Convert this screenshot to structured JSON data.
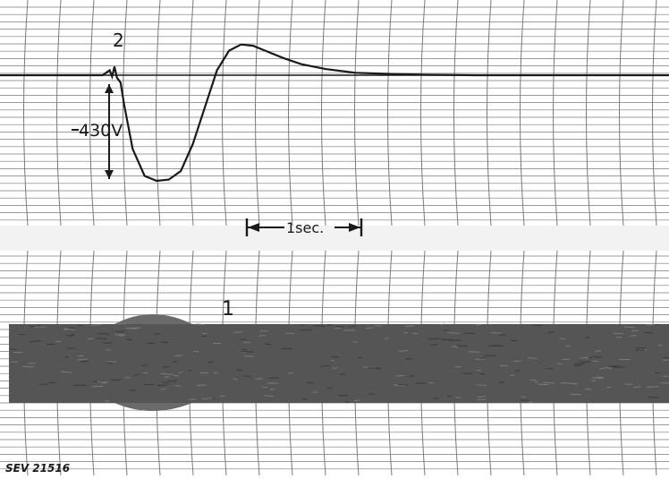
{
  "chart_data": [
    {
      "type": "line",
      "panel": "upper oscillogram",
      "title": "",
      "trace_label": "2",
      "amplitude_label": "430V",
      "time_marker_label": "1sec.",
      "xlabel": "",
      "ylabel": "",
      "grid": true,
      "xlim": [
        -0.95,
        4.6
      ],
      "ylim": [
        -600,
        700
      ],
      "series": [
        {
          "x": [
            -0.95,
            -0.1,
            -0.04,
            -0.02,
            0.0,
            0.02,
            0.05,
            0.08,
            0.15,
            0.25,
            0.35,
            0.45,
            0.55,
            0.65,
            0.75,
            0.85,
            0.95,
            1.05,
            1.15,
            1.25,
            1.4,
            1.55,
            1.75,
            2.0,
            2.3,
            2.6,
            3.0,
            3.5,
            4.0,
            4.6
          ],
          "y": [
            0,
            0,
            20,
            -5,
            35,
            -10,
            -30,
            -120,
            -300,
            -410,
            -430,
            -425,
            -390,
            -280,
            -130,
            20,
            100,
            125,
            120,
            100,
            70,
            45,
            25,
            10,
            5,
            2,
            0,
            0,
            0,
            0
          ]
        }
      ]
    },
    {
      "type": "area",
      "panel": "lower oscillogram",
      "trace_label": "1",
      "grid": true,
      "note": "dense high-frequency band (filled)"
    }
  ],
  "footer": {
    "catalog_label": "SEV 21516"
  },
  "colors": {
    "paper": "#ffffff",
    "grid": "#7a7a7a",
    "trace": "#1a1a1a",
    "band": "#555555",
    "separator": "#e6e6e6"
  }
}
